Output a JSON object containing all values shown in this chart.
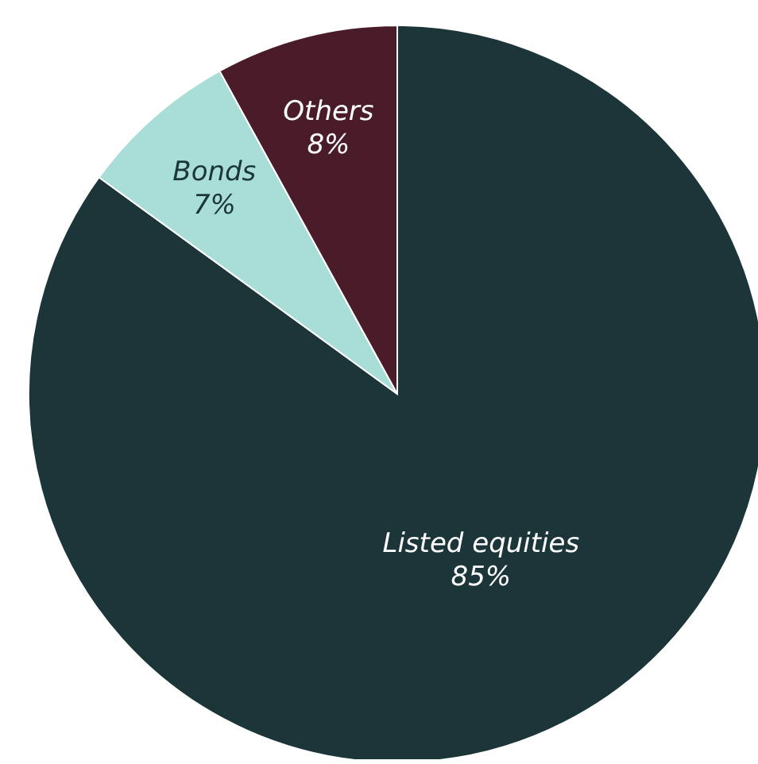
{
  "chart_data": {
    "type": "pie",
    "categories": [
      "Listed equities",
      "Bonds",
      "Others"
    ],
    "values": [
      85,
      7,
      8
    ],
    "colors": [
      "#1c3539",
      "#a8ddd8",
      "#4a1c2a"
    ],
    "value_labels": [
      "85%",
      "7%",
      "8%"
    ]
  }
}
